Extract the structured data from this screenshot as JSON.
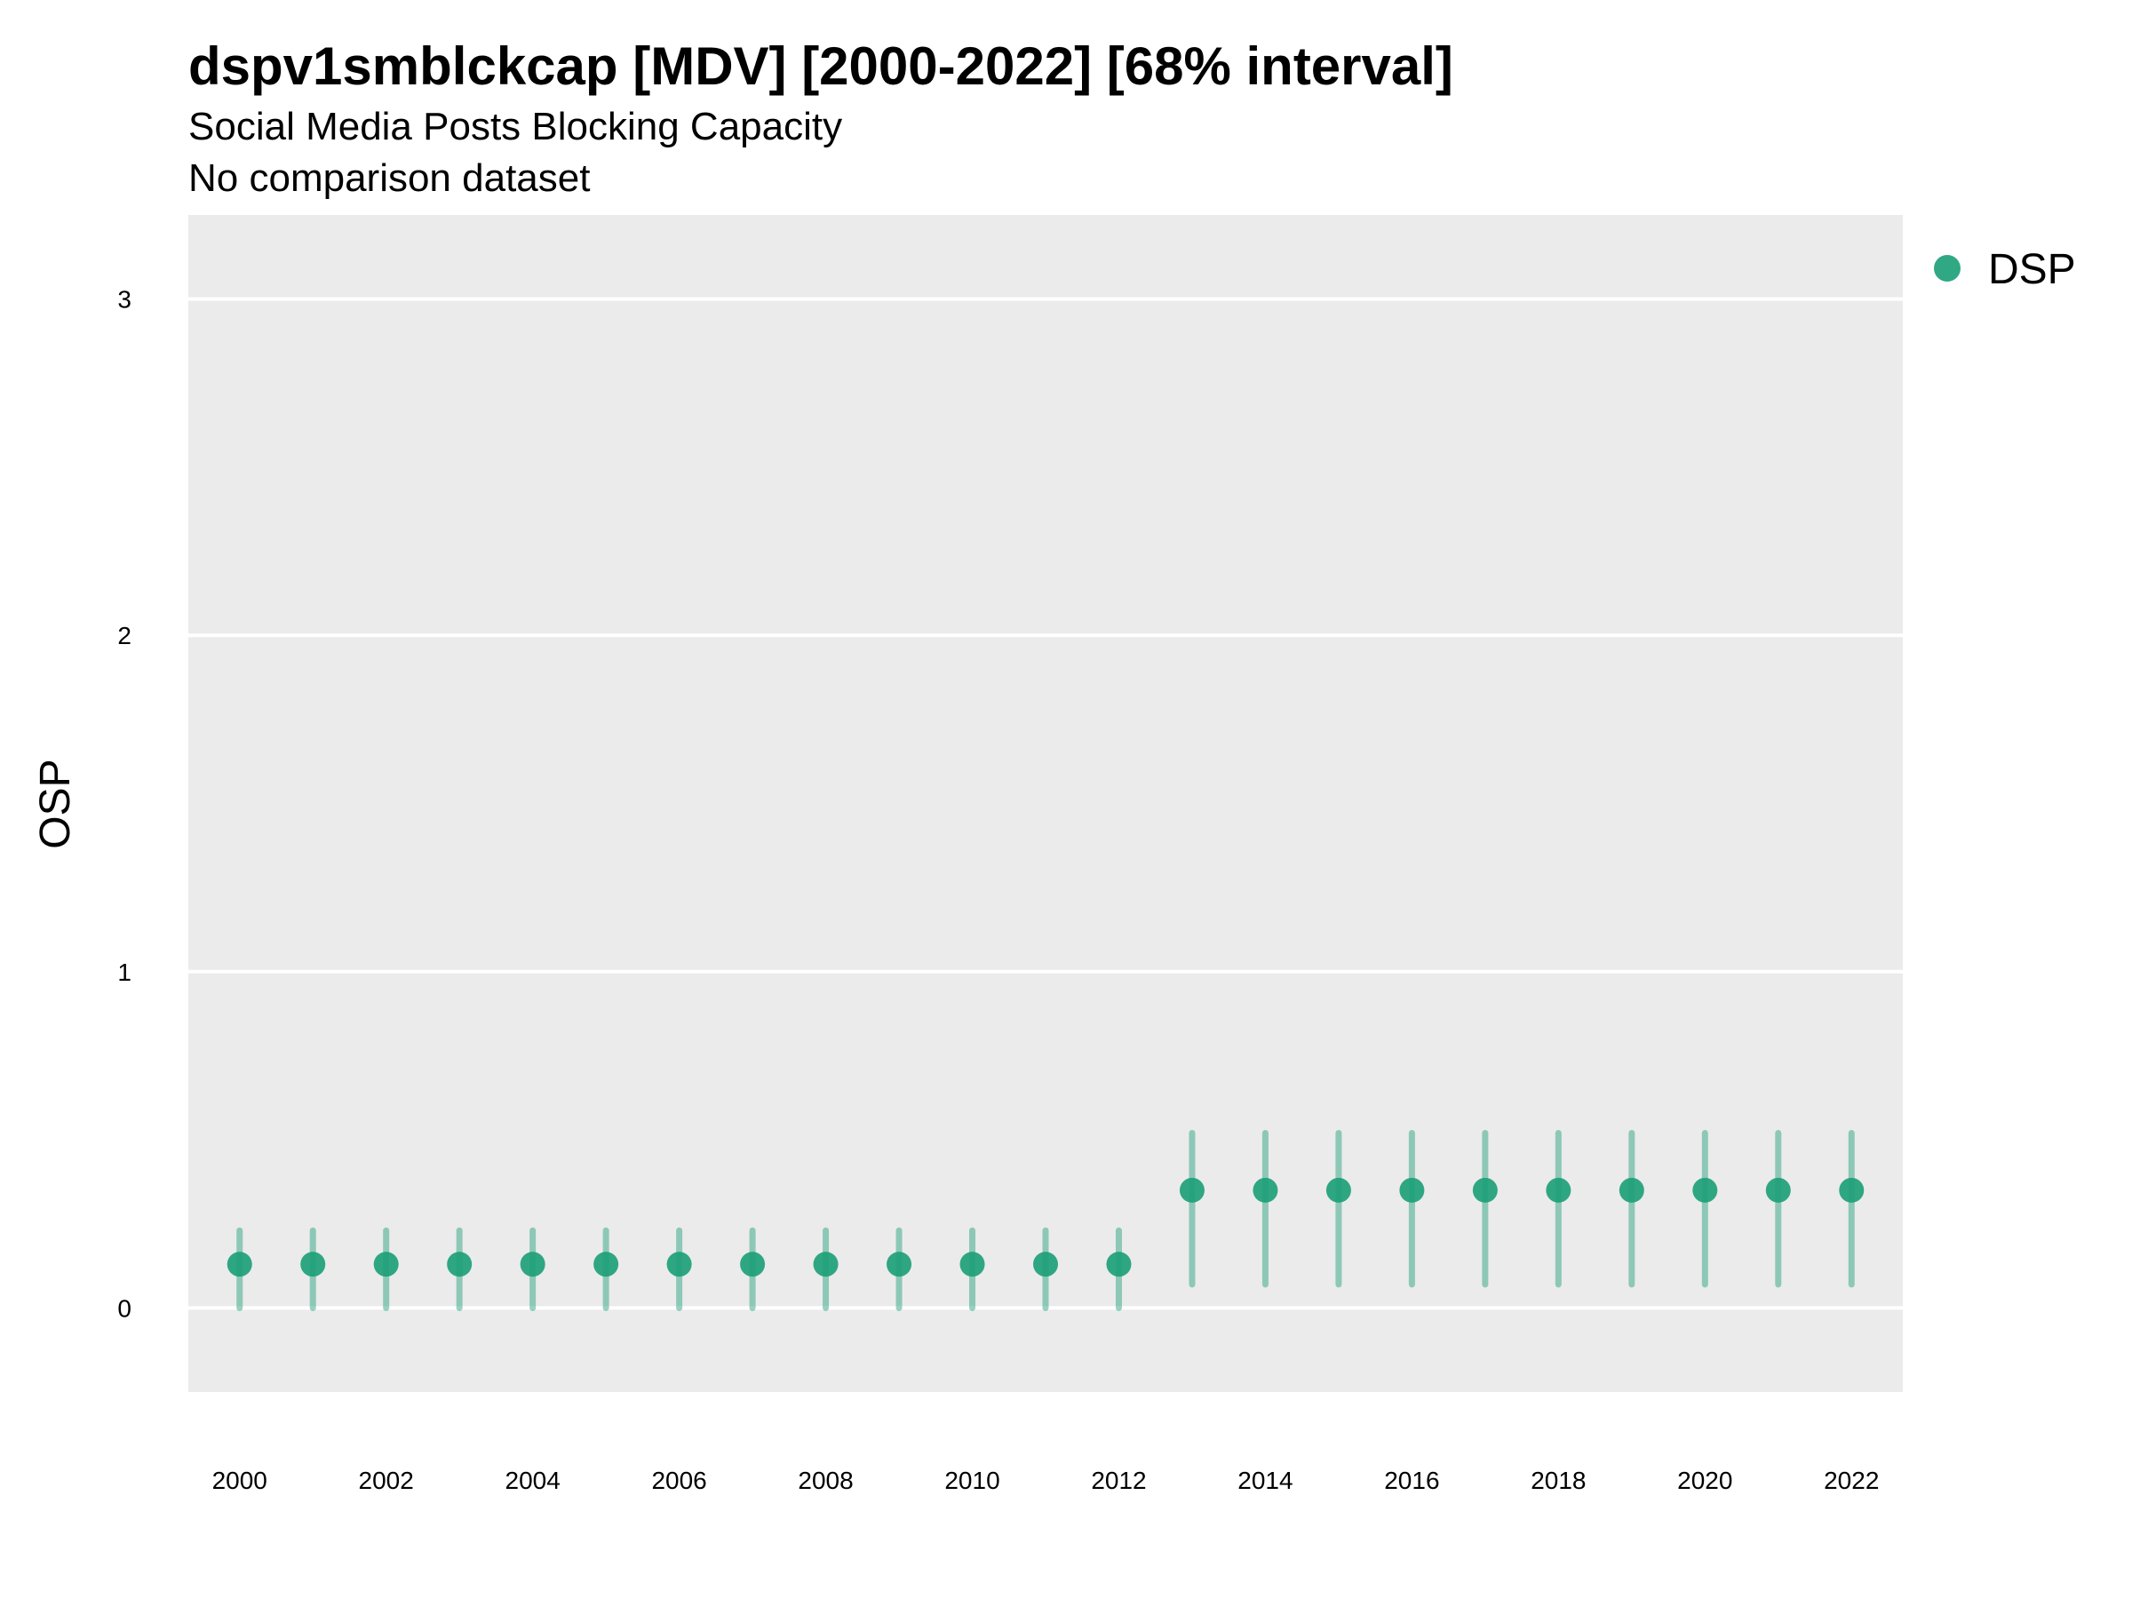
{
  "chart_data": {
    "type": "scatter",
    "title": "dspv1smblckcap [MDV] [2000-2022] [68% interval]",
    "subtitle": "Social Media Posts Blocking Capacity",
    "caption": "No comparison dataset",
    "xlabel": "",
    "ylabel": "OSP",
    "x": [
      2000,
      2001,
      2002,
      2003,
      2004,
      2005,
      2006,
      2007,
      2008,
      2009,
      2010,
      2011,
      2012,
      2013,
      2014,
      2015,
      2016,
      2017,
      2018,
      2019,
      2020,
      2021,
      2022
    ],
    "x_ticks": [
      2000,
      2002,
      2004,
      2006,
      2008,
      2010,
      2012,
      2014,
      2016,
      2018,
      2020,
      2022
    ],
    "y_ticks": [
      0,
      1,
      2,
      3
    ],
    "xlim": [
      1999.3,
      2022.7
    ],
    "ylim": [
      -0.25,
      3.25
    ],
    "grid": true,
    "legend_position": "right",
    "series": [
      {
        "name": "DSP",
        "color": "#1b9e77",
        "values": [
          0.13,
          0.13,
          0.13,
          0.13,
          0.13,
          0.13,
          0.13,
          0.13,
          0.13,
          0.13,
          0.13,
          0.13,
          0.13,
          0.35,
          0.35,
          0.35,
          0.35,
          0.35,
          0.35,
          0.35,
          0.35,
          0.35,
          0.35
        ],
        "lower": [
          0.0,
          0.0,
          0.0,
          0.0,
          0.0,
          0.0,
          0.0,
          0.0,
          0.0,
          0.0,
          0.0,
          0.0,
          0.0,
          0.07,
          0.07,
          0.07,
          0.07,
          0.07,
          0.07,
          0.07,
          0.07,
          0.07,
          0.07
        ],
        "upper": [
          0.23,
          0.23,
          0.23,
          0.23,
          0.23,
          0.23,
          0.23,
          0.23,
          0.23,
          0.23,
          0.23,
          0.23,
          0.23,
          0.52,
          0.52,
          0.52,
          0.52,
          0.52,
          0.52,
          0.52,
          0.52,
          0.52,
          0.52
        ]
      }
    ]
  }
}
